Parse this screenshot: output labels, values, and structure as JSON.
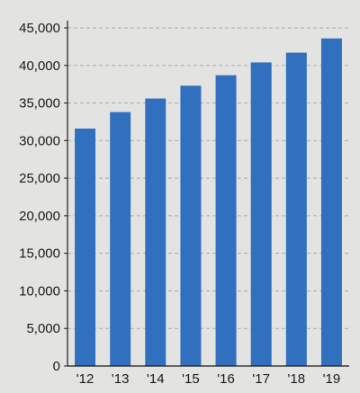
{
  "chart_data": {
    "type": "bar",
    "title": "",
    "xlabel": "",
    "ylabel": "",
    "categories": [
      "'12",
      "'13",
      "'14",
      "'15",
      "'16",
      "'17",
      "'18",
      "'19"
    ],
    "values": [
      31600,
      33800,
      35600,
      37300,
      38700,
      40400,
      41700,
      43600
    ],
    "ylim": [
      0,
      45000
    ],
    "yticks": [
      0,
      5000,
      10000,
      15000,
      20000,
      25000,
      30000,
      35000,
      40000,
      45000
    ],
    "ytick_labels": [
      "0",
      "5,000",
      "10,000",
      "15,000",
      "20,000",
      "25,000",
      "30,000",
      "35,000",
      "40,000",
      "45,000"
    ],
    "grid": true,
    "grid_style": "dashed horizontal",
    "colors": {
      "bar": "#3170be",
      "background": "#e3e4e2",
      "axis": "#1a1a1a",
      "grid": "#a9a9a9"
    }
  }
}
